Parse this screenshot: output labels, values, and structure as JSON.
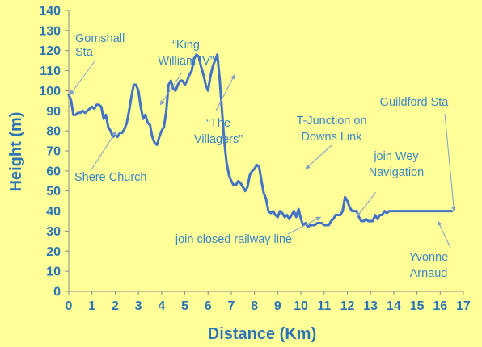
{
  "chart_data": {
    "type": "line",
    "title": "",
    "xlabel": "Distance (Km)",
    "ylabel": "Height (m)",
    "xlim": [
      0,
      17
    ],
    "ylim": [
      0,
      140
    ],
    "xticks": [
      0,
      1,
      2,
      3,
      4,
      5,
      6,
      7,
      8,
      9,
      10,
      11,
      12,
      13,
      14,
      15,
      16,
      17
    ],
    "yticks": [
      0,
      10,
      20,
      30,
      40,
      50,
      60,
      70,
      80,
      90,
      100,
      110,
      120,
      130,
      140
    ],
    "grid": false,
    "legend": "none",
    "line_color": "#4472c4",
    "series": [
      {
        "x": [
          0.0,
          0.1,
          0.2,
          0.3,
          0.4,
          0.5,
          0.6,
          0.7,
          0.8,
          0.9,
          1.0,
          1.1,
          1.2,
          1.3,
          1.4,
          1.5,
          1.6,
          1.7,
          1.8,
          1.9,
          2.0,
          2.1,
          2.2,
          2.3,
          2.4,
          2.5,
          2.6,
          2.7,
          2.8,
          2.9,
          3.0,
          3.1,
          3.2,
          3.3,
          3.4,
          3.5,
          3.6,
          3.7,
          3.8,
          3.9,
          4.0,
          4.1,
          4.2,
          4.3,
          4.4,
          4.5,
          4.6,
          4.7,
          4.8,
          4.9,
          5.0,
          5.1,
          5.2,
          5.3,
          5.4,
          5.5,
          5.6,
          5.7,
          5.8,
          5.9,
          6.0,
          6.1,
          6.2,
          6.3,
          6.4,
          6.5,
          6.6,
          6.7,
          6.8,
          6.9,
          7.0,
          7.1,
          7.2,
          7.3,
          7.4,
          7.5,
          7.6,
          7.7,
          7.8,
          7.9,
          8.0,
          8.1,
          8.2,
          8.3,
          8.4,
          8.5,
          8.6,
          8.7,
          8.8,
          8.9,
          9.0,
          9.1,
          9.2,
          9.3,
          9.4,
          9.5,
          9.6,
          9.7,
          9.8,
          9.9,
          10.0,
          10.1,
          10.2,
          10.3,
          10.4,
          10.5,
          10.6,
          10.7,
          10.8,
          10.9,
          11.0,
          11.1,
          11.2,
          11.3,
          11.4,
          11.5,
          11.6,
          11.7,
          11.8,
          11.9,
          12.0,
          12.1,
          12.2,
          12.3,
          12.4,
          12.5,
          12.6,
          12.7,
          12.8,
          12.9,
          13.0,
          13.1,
          13.2,
          13.3,
          13.4,
          13.5,
          13.6,
          13.7,
          13.8,
          13.9,
          14.0,
          14.1,
          14.2,
          14.3,
          14.4,
          14.5,
          14.6,
          14.7,
          14.8,
          14.9,
          15.0,
          15.1,
          15.2,
          15.3,
          15.4,
          15.5,
          15.6,
          15.7,
          15.8,
          15.9,
          16.0,
          16.1,
          16.2,
          16.3,
          16.4,
          16.5
        ],
        "y": [
          98,
          95,
          88,
          88,
          89,
          89,
          90,
          89,
          90,
          91,
          92,
          91,
          93,
          93,
          92,
          86,
          88,
          82,
          80,
          77,
          78,
          77,
          79,
          79,
          81,
          84,
          90,
          97,
          103,
          103,
          100,
          92,
          86,
          88,
          84,
          83,
          77,
          74,
          73,
          77,
          80,
          82,
          90,
          103,
          105,
          101,
          100,
          103,
          105,
          105,
          103,
          105,
          108,
          110,
          116,
          118,
          117,
          112,
          108,
          103,
          100,
          107,
          112,
          115,
          118,
          106,
          90,
          75,
          64,
          58,
          55,
          53,
          53,
          55,
          54,
          52,
          50,
          52,
          58,
          60,
          61,
          63,
          62,
          55,
          49,
          46,
          40,
          39,
          40,
          38,
          37,
          40,
          39,
          37,
          38,
          36,
          38,
          40,
          37,
          41,
          36,
          33,
          34,
          32,
          33,
          33,
          33,
          34,
          34,
          34,
          33,
          33,
          33,
          35,
          36,
          38,
          38,
          38,
          40,
          47,
          45,
          42,
          40,
          40,
          40,
          37,
          35,
          35,
          36,
          35,
          35,
          35,
          38,
          36,
          38,
          38,
          40,
          39,
          40,
          40,
          40,
          40,
          40,
          40,
          40,
          40,
          40,
          40,
          40,
          40,
          40,
          40,
          40,
          40,
          40,
          40,
          40,
          40,
          40,
          40,
          40,
          40,
          40,
          40,
          40,
          40
        ]
      }
    ],
    "annotations": [
      {
        "id": "gomshall",
        "lines": [
          "Gomshall",
          "Sta"
        ],
        "point": [
          0.05,
          98
        ]
      },
      {
        "id": "king-william",
        "lines": [
          "“King",
          "William IV”"
        ],
        "point": [
          3.95,
          93
        ]
      },
      {
        "id": "villagers",
        "lines": [
          "“The",
          "Villagers”"
        ],
        "point": [
          7.15,
          108
        ]
      },
      {
        "id": "t-junction",
        "lines": [
          "T-Junction on",
          "Downs Link"
        ],
        "point": [
          10.2,
          61
        ]
      },
      {
        "id": "guildford",
        "lines": [
          "Guildford Sta"
        ],
        "point": [
          16.6,
          40
        ]
      },
      {
        "id": "shere-church",
        "lines": [
          "Shere Church"
        ],
        "point": [
          2.05,
          80
        ]
      },
      {
        "id": "wey-navigation",
        "lines": [
          "join Wey",
          "Navigation"
        ],
        "point": [
          12.4,
          37
        ]
      },
      {
        "id": "closed-railway",
        "lines": [
          "join closed railway line"
        ],
        "point": [
          10.85,
          37
        ]
      },
      {
        "id": "yvonne-arnaud",
        "lines": [
          "Yvonne",
          "Arnaud"
        ],
        "point": [
          15.9,
          35
        ]
      }
    ]
  }
}
